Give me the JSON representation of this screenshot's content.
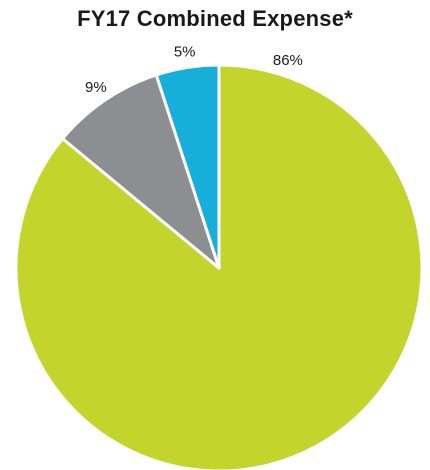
{
  "chart_data": {
    "type": "pie",
    "title": "FY17 Combined Expense*",
    "start_angle_deg": 0,
    "direction": "clockwise",
    "slices": [
      {
        "value": 86,
        "label": "86%",
        "color": "#c3d52d"
      },
      {
        "value": 9,
        "label": "9%",
        "color": "#8c8e91"
      },
      {
        "value": 5,
        "label": "5%",
        "color": "#17afd9"
      }
    ],
    "border_color": "#ffffff"
  }
}
